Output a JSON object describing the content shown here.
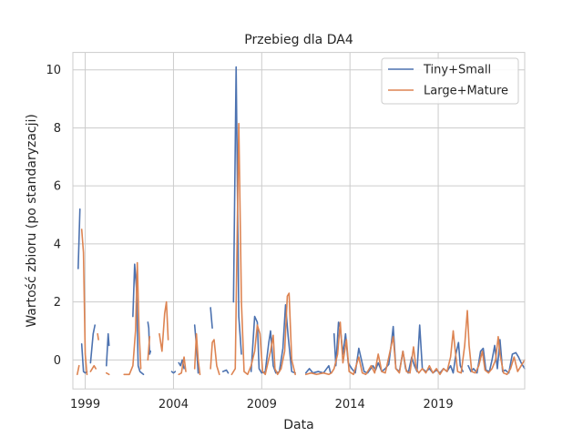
{
  "chart_data": {
    "type": "line",
    "title": "Przebieg dla DA4",
    "xlabel": "Data",
    "ylabel": "Wartość zbioru (po standaryzacji)",
    "xlim": [
      1998.3,
      2023.9
    ],
    "ylim": [
      -1.0,
      10.6
    ],
    "x_ticks": [
      1999,
      2004,
      2009,
      2014,
      2019
    ],
    "y_ticks": [
      0,
      2,
      4,
      6,
      8,
      10
    ],
    "grid": true,
    "legend_position": "top-right",
    "series": [
      {
        "name": "Tiny+Small",
        "color": "#4c72b0",
        "points": [
          [
            1998.6,
            3.15
          ],
          [
            1998.7,
            5.2
          ],
          null,
          [
            1998.8,
            0.55
          ],
          [
            1998.9,
            -0.4
          ],
          [
            1999.0,
            -0.45
          ],
          [
            1999.1,
            -0.4
          ],
          null,
          [
            1999.3,
            -0.1
          ],
          [
            1999.45,
            0.9
          ],
          [
            1999.55,
            1.2
          ],
          null,
          [
            2000.2,
            -0.2
          ],
          [
            2000.3,
            0.9
          ],
          [
            2000.35,
            0.5
          ],
          null,
          [
            2001.7,
            1.5
          ],
          [
            2001.8,
            3.3
          ],
          [
            2001.9,
            2.5
          ],
          [
            2002.0,
            -0.2
          ],
          [
            2002.1,
            -0.4
          ],
          [
            2002.3,
            -0.5
          ],
          null,
          [
            2002.55,
            1.3
          ],
          [
            2002.6,
            1.1
          ],
          [
            2002.65,
            0.2
          ],
          [
            2002.7,
            0.3
          ],
          null,
          [
            2003.9,
            -0.4
          ],
          [
            2004.0,
            -0.45
          ],
          [
            2004.1,
            -0.4
          ],
          null,
          [
            2004.3,
            -0.1
          ],
          [
            2004.4,
            -0.2
          ],
          [
            2004.5,
            0.0
          ],
          [
            2004.6,
            -0.3
          ],
          null,
          [
            2005.2,
            1.2
          ],
          [
            2005.3,
            0.5
          ],
          [
            2005.4,
            -0.45
          ],
          null,
          [
            2006.1,
            1.8
          ],
          [
            2006.2,
            1.1
          ],
          null,
          [
            2006.8,
            -0.4
          ],
          [
            2007.0,
            -0.35
          ],
          [
            2007.1,
            -0.45
          ],
          null,
          [
            2007.4,
            2.0
          ],
          [
            2007.55,
            10.1
          ],
          [
            2007.7,
            1.5
          ],
          [
            2007.85,
            0.2
          ],
          null,
          [
            2008.4,
            -0.4
          ],
          [
            2008.6,
            1.5
          ],
          [
            2008.75,
            1.3
          ],
          [
            2008.85,
            -0.3
          ],
          [
            2009.0,
            -0.45
          ],
          [
            2009.2,
            -0.4
          ],
          [
            2009.4,
            0.6
          ],
          [
            2009.5,
            1.0
          ],
          [
            2009.65,
            -0.2
          ],
          [
            2009.8,
            -0.45
          ],
          [
            2010.0,
            -0.4
          ],
          [
            2010.2,
            0.4
          ],
          [
            2010.35,
            1.9
          ],
          [
            2010.5,
            0.8
          ],
          [
            2010.7,
            -0.4
          ],
          [
            2010.9,
            -0.45
          ],
          null,
          [
            2011.5,
            -0.45
          ],
          [
            2011.7,
            -0.3
          ],
          [
            2011.9,
            -0.45
          ],
          [
            2012.2,
            -0.4
          ],
          [
            2012.5,
            -0.45
          ],
          [
            2012.8,
            -0.2
          ],
          [
            2012.9,
            -0.45
          ],
          null,
          [
            2013.1,
            0.9
          ],
          [
            2013.2,
            -0.2
          ],
          [
            2013.35,
            1.3
          ],
          [
            2013.45,
            1.1
          ],
          [
            2013.6,
            0.2
          ],
          [
            2013.75,
            0.9
          ],
          [
            2013.9,
            -0.1
          ],
          [
            2014.1,
            -0.3
          ],
          [
            2014.3,
            -0.45
          ],
          [
            2014.5,
            0.4
          ],
          [
            2014.65,
            0.0
          ],
          [
            2014.8,
            -0.4
          ],
          [
            2015.0,
            -0.45
          ],
          [
            2015.3,
            -0.2
          ],
          [
            2015.45,
            -0.35
          ],
          [
            2015.6,
            -0.1
          ],
          [
            2015.8,
            -0.4
          ],
          [
            2016.0,
            -0.3
          ],
          [
            2016.2,
            -0.15
          ],
          [
            2016.35,
            0.6
          ],
          [
            2016.45,
            1.15
          ],
          [
            2016.6,
            -0.3
          ],
          [
            2016.8,
            -0.4
          ],
          [
            2017.0,
            0.3
          ],
          [
            2017.15,
            -0.3
          ],
          [
            2017.3,
            -0.45
          ],
          [
            2017.5,
            0.1
          ],
          [
            2017.65,
            -0.2
          ],
          [
            2017.8,
            -0.4
          ],
          [
            2017.95,
            1.2
          ],
          [
            2018.1,
            -0.3
          ],
          [
            2018.3,
            -0.4
          ],
          [
            2018.5,
            -0.3
          ],
          [
            2018.7,
            -0.45
          ],
          [
            2018.9,
            -0.35
          ],
          [
            2019.1,
            -0.45
          ],
          [
            2019.3,
            -0.3
          ],
          [
            2019.5,
            -0.4
          ],
          [
            2019.7,
            -0.2
          ],
          [
            2019.85,
            -0.45
          ],
          [
            2020.0,
            0.2
          ],
          [
            2020.15,
            0.6
          ],
          [
            2020.25,
            -0.2
          ],
          [
            2020.4,
            -0.4
          ],
          null,
          [
            2020.7,
            -0.2
          ],
          [
            2020.85,
            -0.4
          ],
          [
            2021.0,
            -0.3
          ],
          [
            2021.2,
            -0.45
          ],
          [
            2021.4,
            0.3
          ],
          [
            2021.55,
            0.4
          ],
          [
            2021.7,
            -0.35
          ],
          [
            2021.9,
            -0.4
          ],
          [
            2022.05,
            0.0
          ],
          [
            2022.2,
            0.5
          ],
          [
            2022.35,
            -0.3
          ],
          [
            2022.5,
            0.7
          ],
          [
            2022.65,
            -0.4
          ],
          [
            2022.8,
            -0.35
          ],
          [
            2023.0,
            -0.45
          ],
          [
            2023.2,
            0.2
          ],
          [
            2023.4,
            0.25
          ],
          [
            2023.55,
            0.1
          ],
          [
            2023.7,
            -0.1
          ],
          [
            2023.9,
            -0.3
          ]
        ]
      },
      {
        "name": "Large+Mature",
        "color": "#dd8452",
        "points": [
          [
            1998.55,
            -0.5
          ],
          [
            1998.65,
            -0.2
          ],
          null,
          [
            1998.8,
            4.5
          ],
          [
            1998.9,
            3.7
          ],
          [
            1999.0,
            0.2
          ],
          [
            1999.1,
            -0.5
          ],
          null,
          [
            1999.3,
            -0.4
          ],
          [
            1999.5,
            -0.2
          ],
          [
            1999.6,
            -0.3
          ],
          null,
          [
            1999.7,
            0.9
          ],
          [
            1999.75,
            0.7
          ],
          null,
          [
            2000.2,
            -0.45
          ],
          [
            2000.35,
            -0.5
          ],
          null,
          [
            2001.2,
            -0.5
          ],
          [
            2001.5,
            -0.5
          ],
          [
            2001.7,
            -0.2
          ],
          [
            2001.85,
            1.0
          ],
          [
            2001.95,
            3.35
          ],
          [
            2002.05,
            1.0
          ],
          [
            2002.15,
            -0.3
          ],
          null,
          [
            2002.55,
            0.0
          ],
          [
            2002.65,
            0.8
          ],
          null,
          [
            2003.2,
            0.9
          ],
          [
            2003.35,
            0.3
          ],
          [
            2003.5,
            1.6
          ],
          [
            2003.6,
            2.0
          ],
          [
            2003.7,
            0.7
          ],
          null,
          [
            2004.3,
            -0.5
          ],
          [
            2004.45,
            -0.45
          ],
          [
            2004.6,
            0.1
          ],
          [
            2004.7,
            -0.4
          ],
          null,
          [
            2005.2,
            -0.3
          ],
          [
            2005.3,
            0.9
          ],
          [
            2005.4,
            0.0
          ],
          [
            2005.5,
            -0.5
          ],
          null,
          [
            2006.1,
            -0.3
          ],
          [
            2006.2,
            0.6
          ],
          [
            2006.3,
            0.7
          ],
          [
            2006.45,
            -0.2
          ],
          [
            2006.6,
            -0.5
          ],
          null,
          [
            2007.3,
            -0.5
          ],
          [
            2007.5,
            -0.3
          ],
          [
            2007.7,
            8.15
          ],
          [
            2007.85,
            2.0
          ],
          [
            2008.0,
            -0.4
          ],
          [
            2008.2,
            -0.5
          ],
          [
            2008.4,
            -0.2
          ],
          [
            2008.6,
            0.3
          ],
          [
            2008.75,
            1.2
          ],
          [
            2008.9,
            0.9
          ],
          [
            2009.05,
            -0.4
          ],
          [
            2009.2,
            -0.5
          ],
          [
            2009.5,
            0.3
          ],
          [
            2009.65,
            0.85
          ],
          [
            2009.75,
            -0.3
          ],
          [
            2009.9,
            -0.5
          ],
          [
            2010.1,
            -0.3
          ],
          [
            2010.3,
            0.3
          ],
          [
            2010.45,
            2.2
          ],
          [
            2010.55,
            2.3
          ],
          [
            2010.7,
            0.0
          ],
          [
            2010.9,
            -0.5
          ],
          null,
          [
            2011.5,
            -0.5
          ],
          [
            2011.8,
            -0.45
          ],
          [
            2012.1,
            -0.5
          ],
          [
            2012.5,
            -0.45
          ],
          [
            2012.8,
            -0.5
          ],
          [
            2012.95,
            -0.45
          ],
          [
            2013.1,
            -0.3
          ],
          [
            2013.3,
            0.2
          ],
          [
            2013.45,
            1.3
          ],
          [
            2013.6,
            -0.1
          ],
          [
            2013.8,
            0.7
          ],
          [
            2013.95,
            -0.4
          ],
          [
            2014.2,
            -0.5
          ],
          [
            2014.5,
            0.1
          ],
          [
            2014.7,
            -0.45
          ],
          [
            2014.9,
            -0.5
          ],
          [
            2015.2,
            -0.2
          ],
          [
            2015.4,
            -0.45
          ],
          [
            2015.6,
            0.2
          ],
          [
            2015.8,
            -0.4
          ],
          [
            2016.0,
            -0.45
          ],
          [
            2016.2,
            0.1
          ],
          [
            2016.45,
            0.8
          ],
          [
            2016.6,
            -0.3
          ],
          [
            2016.8,
            -0.45
          ],
          [
            2017.0,
            0.3
          ],
          [
            2017.2,
            -0.4
          ],
          [
            2017.4,
            -0.45
          ],
          [
            2017.6,
            0.45
          ],
          [
            2017.75,
            -0.3
          ],
          [
            2017.9,
            -0.45
          ],
          [
            2018.1,
            -0.3
          ],
          [
            2018.3,
            -0.45
          ],
          [
            2018.5,
            -0.2
          ],
          [
            2018.7,
            -0.45
          ],
          [
            2018.9,
            -0.3
          ],
          [
            2019.1,
            -0.5
          ],
          [
            2019.3,
            -0.3
          ],
          [
            2019.5,
            -0.4
          ],
          [
            2019.7,
            0.1
          ],
          [
            2019.85,
            1.0
          ],
          [
            2019.95,
            0.4
          ],
          [
            2020.1,
            -0.4
          ],
          [
            2020.3,
            -0.45
          ],
          [
            2020.5,
            0.5
          ],
          [
            2020.65,
            1.7
          ],
          [
            2020.75,
            0.5
          ],
          [
            2020.9,
            -0.4
          ],
          [
            2021.1,
            -0.45
          ],
          [
            2021.3,
            -0.2
          ],
          [
            2021.5,
            0.3
          ],
          [
            2021.65,
            -0.35
          ],
          [
            2021.85,
            -0.45
          ],
          [
            2022.05,
            -0.3
          ],
          [
            2022.25,
            0.0
          ],
          [
            2022.4,
            0.8
          ],
          [
            2022.5,
            0.2
          ],
          [
            2022.7,
            -0.45
          ],
          [
            2022.9,
            -0.5
          ],
          [
            2023.1,
            -0.3
          ],
          [
            2023.3,
            0.1
          ],
          [
            2023.5,
            -0.4
          ],
          [
            2023.7,
            -0.2
          ],
          [
            2023.9,
            0.0
          ]
        ]
      }
    ]
  }
}
